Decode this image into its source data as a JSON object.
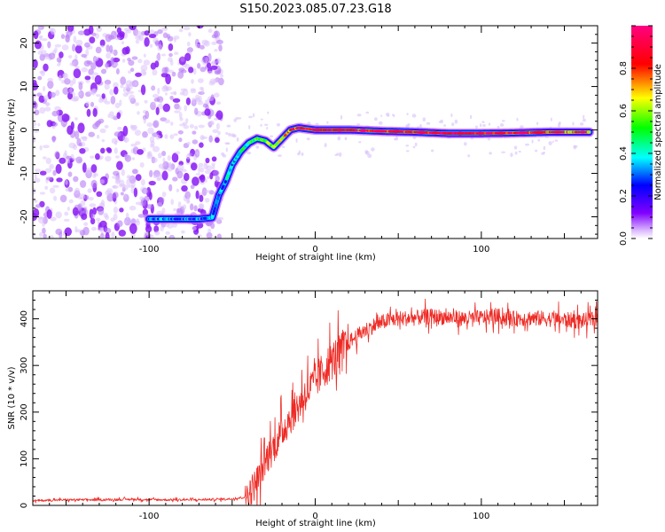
{
  "title": "S150.2023.085.07.23.G18",
  "chart_data": [
    {
      "type": "heatmap",
      "xlabel": "Height of straight line (km)",
      "ylabel": "Frequency (Hz)",
      "xlim": [
        -170,
        170
      ],
      "ylim": [
        -25,
        24
      ],
      "x_ticks": [
        -100,
        0,
        100
      ],
      "x_tick_labels": [
        "-100",
        "0",
        "100"
      ],
      "y_ticks": [
        -20,
        -10,
        0,
        10,
        20
      ],
      "y_tick_labels": [
        "-20",
        "-10",
        "0",
        "10",
        "20"
      ],
      "colorbar": {
        "label": "Normalized spectral amplitude",
        "range": [
          0,
          1
        ],
        "ticks": [
          0,
          0.2,
          0.4,
          0.6,
          0.8
        ],
        "tick_labels": [
          "0.0",
          "0.2",
          "0.4",
          "0.6",
          "0.8"
        ],
        "colormap": [
          "#f0f0ff",
          "#8000ff",
          "#0000ff",
          "#00ffff",
          "#00ff00",
          "#ffff00",
          "#ff0000",
          "#ff0080"
        ]
      },
      "ridge": {
        "x": [
          -100,
          -90,
          -80,
          -70,
          -62,
          -58,
          -54,
          -50,
          -45,
          -40,
          -35,
          -30,
          -25,
          -20,
          -15,
          -10,
          0,
          20,
          40,
          60,
          80,
          100,
          120,
          140,
          165
        ],
        "y": [
          -20.5,
          -20.5,
          -20.5,
          -20.5,
          -20.2,
          -15,
          -12,
          -8,
          -5,
          -3,
          -2,
          -2.5,
          -4,
          -2,
          0,
          0.5,
          0,
          0,
          -0.3,
          -0.5,
          -0.8,
          -0.8,
          -0.7,
          -0.5,
          -0.5
        ],
        "amplitude": [
          0.3,
          0.3,
          0.3,
          0.3,
          0.3,
          0.3,
          0.35,
          0.4,
          0.45,
          0.5,
          0.55,
          0.6,
          0.6,
          0.7,
          0.8,
          0.9,
          0.95,
          0.9,
          0.85,
          0.9,
          0.95,
          0.9,
          0.9,
          0.85,
          0.8
        ]
      },
      "noise_region_x": [
        -170,
        -60
      ]
    },
    {
      "type": "line",
      "xlabel": "Height of straight line (km)",
      "ylabel": "SNR (10 * v/v)",
      "xlim": [
        -170,
        170
      ],
      "ylim": [
        0,
        460
      ],
      "x_ticks": [
        -100,
        0,
        100
      ],
      "x_tick_labels": [
        "-100",
        "0",
        "100"
      ],
      "y_ticks": [
        0,
        100,
        200,
        300,
        400
      ],
      "y_tick_labels": [
        "0",
        "100",
        "200",
        "300",
        "400"
      ],
      "series": [
        {
          "color": "#ee2a24",
          "x": [
            -170,
            -150,
            -130,
            -110,
            -90,
            -70,
            -50,
            -42,
            -38,
            -34,
            -30,
            -26,
            -22,
            -18,
            -14,
            -10,
            -6,
            -2,
            2,
            6,
            10,
            14,
            18,
            22,
            26,
            30,
            35,
            40,
            45,
            50,
            60,
            70,
            80,
            90,
            100,
            110,
            120,
            130,
            140,
            150,
            160,
            170
          ],
          "values": [
            10,
            12,
            12,
            13,
            12,
            12,
            14,
            18,
            35,
            60,
            95,
            120,
            145,
            170,
            195,
            215,
            240,
            255,
            275,
            295,
            310,
            325,
            340,
            355,
            365,
            375,
            385,
            392,
            398,
            400,
            402,
            405,
            403,
            400,
            402,
            405,
            400,
            402,
            400,
            398,
            395,
            400
          ]
        }
      ]
    }
  ]
}
